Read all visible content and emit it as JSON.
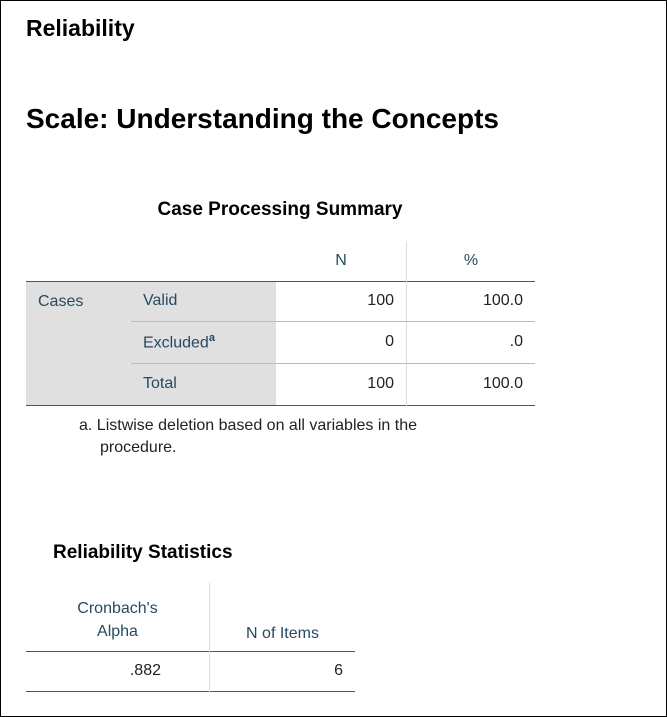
{
  "header": {
    "title": "Reliability",
    "subtitle": "Scale: Understanding the Concepts"
  },
  "case_processing": {
    "title": "Case Processing Summary",
    "columns": [
      "N",
      "%"
    ],
    "row_group": "Cases",
    "rows": [
      {
        "label": "Valid",
        "values": [
          "100",
          "100.0"
        ]
      },
      {
        "label": "Excluded",
        "footnote_mark": "a",
        "values": [
          "0",
          ".0"
        ]
      },
      {
        "label": "Total",
        "values": [
          "100",
          "100.0"
        ]
      }
    ],
    "footnote": "a. Listwise deletion based on all variables in the procedure."
  },
  "reliability_statistics": {
    "title": "Reliability Statistics",
    "columns": [
      "Cronbach's Alpha",
      "N of Items"
    ],
    "rows": [
      [
        ".882",
        "6"
      ]
    ]
  }
}
